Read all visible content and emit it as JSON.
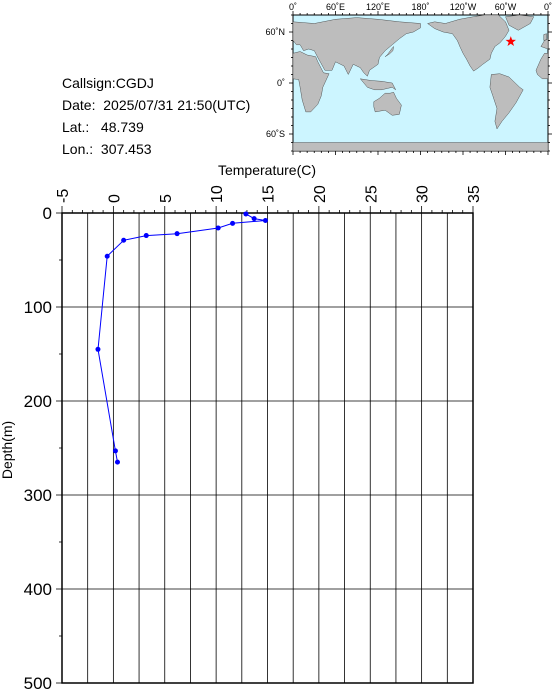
{
  "station": {
    "callsign_label": "Callsign:",
    "callsign": "CGDJ",
    "date_label": "Date:",
    "date": "2025/07/31 21:50(UTC)",
    "lat_label": "Lat.:",
    "lat": "48.739",
    "lon_label": "Lon.:",
    "lon": "307.453"
  },
  "map": {
    "lon_ticks": [
      "0˚",
      "60˚E",
      "120˚E",
      "180˚",
      "120˚W",
      "60˚W",
      "0˚"
    ],
    "lat_ticks": [
      "60˚N",
      "0˚",
      "60˚S"
    ],
    "ocean_color": "#ccf5ff",
    "land_color": "#bdbdbd",
    "marker_color": "#ff0000",
    "marker": {
      "lon": 307.453,
      "lat": 48.739
    }
  },
  "chart_data": {
    "type": "line",
    "xlabel": "Temperature(C)",
    "ylabel": "Depth(m)",
    "xlim": [
      -5,
      35
    ],
    "ylim": [
      0,
      500
    ],
    "x_ticks": [
      -5,
      0,
      5,
      10,
      15,
      20,
      25,
      30,
      35
    ],
    "y_ticks": [
      0,
      100,
      200,
      300,
      400,
      500
    ],
    "grid": true,
    "series_color": "#0000ff",
    "series": [
      {
        "temperature": [
          12.9,
          13.7,
          14.8,
          11.6,
          10.2,
          6.2,
          3.2,
          1.0,
          -0.6,
          -1.5,
          0.2,
          0.4
        ],
        "depth": [
          1,
          6,
          8,
          11,
          16,
          22,
          24,
          29,
          46,
          145,
          253,
          265
        ]
      }
    ]
  }
}
